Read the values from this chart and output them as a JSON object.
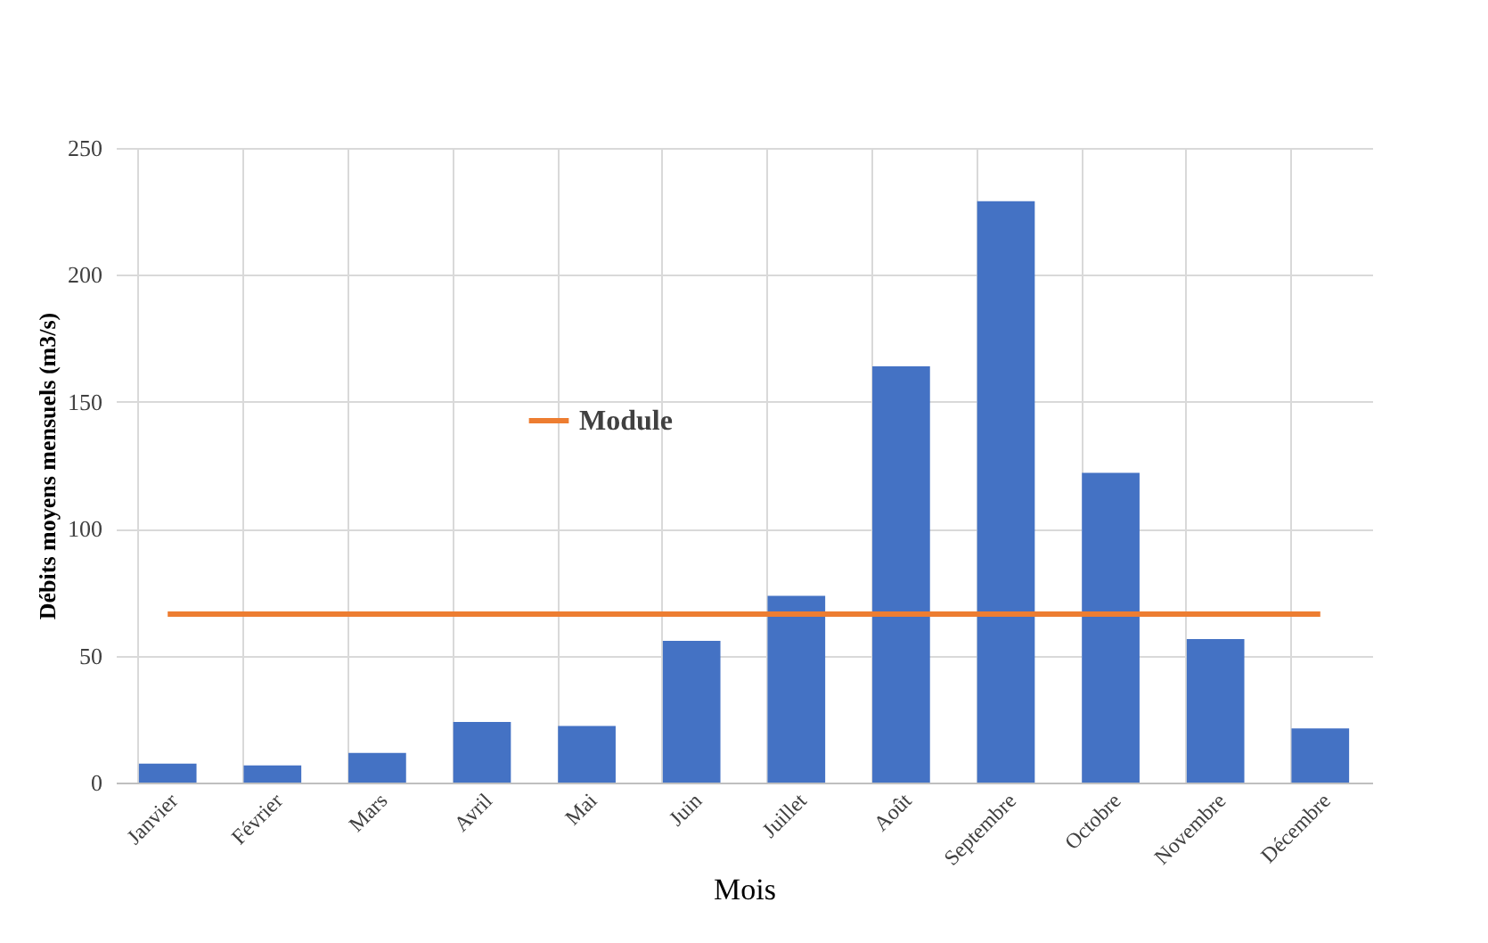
{
  "chart_data": {
    "type": "bar",
    "xlabel": "Mois",
    "ylabel": "Débits moyens mensuels (m3/s)",
    "categories": [
      "Janvier",
      "Février",
      "Mars",
      "Avril",
      "Mai",
      "Juin",
      "Juillet",
      "Août",
      "Septembre",
      "Octobre",
      "Novembre",
      "Décembre"
    ],
    "series": [
      {
        "color": "#4472c4",
        "values": [
          7.5,
          6.8,
          11.7,
          23.9,
          22.3,
          55.8,
          73.6,
          164,
          229,
          122,
          56.5,
          21.3
        ]
      },
      {
        "type": "line",
        "name": "Module",
        "color": "#ed7d31",
        "values": [
          66.4,
          66.4,
          66.4,
          66.4,
          66.4,
          66.4,
          66.4,
          66.4,
          66.4,
          66.4,
          66.4,
          66.4
        ]
      }
    ],
    "ylim": [
      0,
      250
    ],
    "yticks": [
      0,
      50,
      100,
      150,
      200,
      250
    ],
    "grid": true,
    "legend": "top left",
    "marker": "none"
  }
}
